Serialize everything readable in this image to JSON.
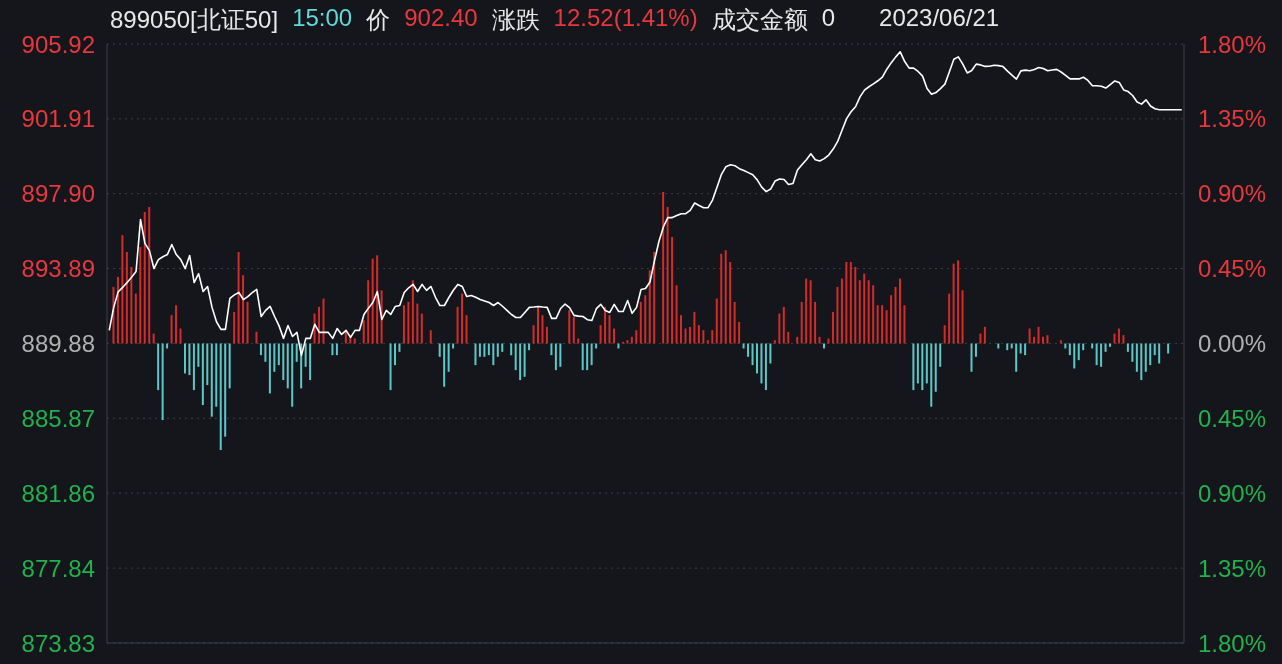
{
  "chart_data": {
    "type": "line",
    "title": "899050[北证50]",
    "annotations": [
      "15:00",
      "价",
      "902.40",
      "涨跌",
      "12.52(1.41%)",
      "成交金额",
      "0",
      "2023/06/21"
    ],
    "categories": [
      null,
      null,
      null,
      null,
      null,
      null,
      null,
      null,
      null,
      null,
      null,
      null,
      null,
      null,
      null,
      null,
      null,
      null,
      null,
      null,
      null,
      null,
      null,
      null,
      null,
      null,
      null,
      null,
      null,
      null,
      null,
      null,
      null,
      null,
      null,
      null,
      null,
      null,
      null,
      null,
      null,
      null,
      null,
      null,
      null,
      null,
      null,
      null,
      null,
      null,
      null,
      null,
      null,
      null,
      null,
      null,
      null,
      null,
      null,
      null,
      null,
      null,
      null,
      null,
      null,
      null,
      null,
      null,
      null,
      null,
      null,
      null,
      null,
      null,
      null,
      null,
      null,
      null,
      null,
      null,
      null,
      null,
      null,
      null,
      null,
      null,
      null,
      null,
      null,
      null,
      null,
      null,
      null,
      null,
      null,
      null,
      null,
      null,
      null,
      null,
      null,
      null,
      null,
      null,
      null,
      null,
      null,
      null,
      null,
      null,
      null,
      null,
      null,
      null,
      null,
      null,
      null,
      null,
      null,
      null,
      null,
      null,
      null,
      null,
      null,
      null,
      null,
      null,
      null,
      null,
      null,
      null,
      null,
      null,
      null,
      null,
      null,
      null,
      null,
      null,
      null,
      null,
      null,
      null,
      null,
      null,
      null,
      null,
      null,
      null,
      null,
      null,
      null,
      null,
      null,
      null,
      null,
      null,
      null,
      null,
      null,
      null,
      null,
      null,
      null,
      null,
      null,
      null,
      null,
      null,
      null,
      null,
      null,
      null,
      null,
      null,
      null,
      null,
      null,
      null,
      null,
      null,
      null,
      null,
      null,
      null,
      null,
      null,
      null,
      null,
      null,
      null,
      null,
      null,
      null,
      null,
      null,
      null,
      null,
      null,
      null,
      null,
      null,
      null,
      null,
      null,
      null,
      null,
      null,
      null,
      null,
      null,
      null,
      null,
      null,
      null,
      null,
      null,
      null,
      null,
      null,
      null,
      null,
      null,
      null,
      null,
      null,
      null,
      null,
      null,
      null,
      null,
      null,
      null,
      null,
      null,
      null,
      null,
      null,
      null,
      null
    ],
    "ylim": [
      873.83,
      905.92
    ],
    "yticks": [
      873.83,
      877.84,
      881.86,
      885.87,
      889.88,
      893.89,
      {
        "value": 897.9,
        "label": "897.90"
      },
      901.91,
      905.92
    ],
    "y2lim": [
      -1.8,
      1.8
    ],
    "y2ticks": [
      {
        "value": -1.8,
        "label": "1.80%"
      },
      {
        "value": -1.35,
        "label": "1.35%"
      },
      {
        "value": -0.9,
        "label": "0.90%"
      },
      {
        "value": -0.45,
        "label": "0.45%"
      },
      {
        "value": 0,
        "label": "0.00%"
      },
      {
        "value": 0.45,
        "label": "0.45%"
      },
      {
        "value": 0.9,
        "label": "0.90%"
      },
      {
        "value": 1.35,
        "label": "1.35%"
      },
      {
        "value": 1.8,
        "label": "1.80%"
      }
    ],
    "grid": "y",
    "stacked": true,
    "series": [
      {
        "type": "bar",
        "axis": "y2",
        "color": "#d42b2b",
        "values": [
          null,
          0.34,
          0.4,
          0.65,
          0.55,
          0.46,
          0.3,
          0.58,
          0.79,
          0.82,
          0.06,
          null,
          null,
          null,
          0.17,
          0.23,
          0.09,
          null,
          null,
          null,
          null,
          null,
          null,
          null,
          null,
          null,
          null,
          null,
          0.19,
          0.55,
          0.41,
          0.25,
          null,
          0.07,
          null,
          null,
          null,
          null,
          null,
          null,
          null,
          null,
          null,
          null,
          null,
          null,
          0.18,
          0.22,
          0.27,
          null,
          null,
          null,
          null,
          0.08,
          0.05,
          0.03,
          null,
          0.14,
          0.38,
          0.51,
          0.53,
          0.32,
          null,
          null,
          null,
          null,
          0.23,
          0.25,
          0.38,
          0.24,
          0.18,
          null,
          0.08,
          null,
          null,
          null,
          null,
          null,
          0.22,
          0.3,
          0.17,
          null,
          null,
          null,
          null,
          null,
          null,
          null,
          null,
          null,
          null,
          null,
          null,
          null,
          null,
          0.11,
          0.22,
          0.17,
          0.1,
          null,
          null,
          null,
          null,
          0.2,
          0.16,
          0.03,
          null,
          null,
          null,
          null,
          0.11,
          0.22,
          0.17,
          0.09,
          null,
          0.01,
          0.02,
          0.04,
          0.08,
          0.25,
          0.29,
          0.44,
          0.55,
          null,
          0.91,
          0.82,
          0.64,
          0.35,
          0.17,
          0.09,
          0.1,
          0.19,
          0.11,
          0.08,
          0.02,
          0.08,
          0.27,
          0.54,
          0.56,
          0.49,
          0.25,
          0.13,
          null,
          null,
          null,
          null,
          null,
          null,
          null,
          0.02,
          0.18,
          0.22,
          0.07,
          null,
          0.04,
          0.25,
          0.39,
          0.38,
          0.25,
          0.04,
          null,
          0.03,
          0.19,
          0.34,
          0.39,
          0.49,
          0.49,
          0.46,
          0.38,
          0.42,
          0.38,
          0.35,
          0.23,
          0.23,
          0.2,
          0.29,
          0.34,
          0.39,
          0.23,
          null,
          null,
          null,
          null,
          null,
          null,
          null,
          null,
          0.11,
          0.3,
          0.48,
          0.5,
          0.32,
          null,
          null,
          null,
          0.06,
          0.1,
          null,
          null,
          null,
          null,
          null,
          null,
          null,
          null,
          null,
          0.09,
          0.04,
          0.1,
          0.04,
          0.05,
          null,
          null,
          0.02,
          null,
          null,
          null,
          null,
          null,
          null,
          null,
          null,
          null,
          null,
          null,
          0.06,
          0.09,
          0.05,
          null,
          null,
          null,
          null,
          null,
          null,
          null,
          null,
          null,
          null,
          null,
          null,
          null
        ]
      },
      {
        "type": "bar",
        "axis": "y2",
        "color": "#5cc9c9",
        "values": [
          null,
          null,
          null,
          null,
          null,
          null,
          null,
          null,
          null,
          null,
          null,
          -0.28,
          -0.46,
          -0.03,
          null,
          null,
          null,
          -0.18,
          -0.19,
          -0.28,
          -0.14,
          -0.37,
          -0.25,
          -0.44,
          -0.38,
          -0.64,
          -0.56,
          -0.27,
          null,
          null,
          null,
          null,
          null,
          null,
          -0.07,
          -0.11,
          -0.3,
          -0.17,
          -0.13,
          -0.22,
          -0.27,
          -0.38,
          -0.11,
          -0.27,
          -0.14,
          -0.22,
          null,
          null,
          null,
          null,
          -0.07,
          -0.07,
          null,
          null,
          null,
          null,
          null,
          null,
          null,
          null,
          null,
          null,
          null,
          -0.28,
          -0.13,
          -0.05,
          null,
          null,
          null,
          null,
          null,
          null,
          null,
          null,
          -0.08,
          -0.26,
          -0.17,
          -0.03,
          null,
          null,
          null,
          null,
          -0.13,
          -0.08,
          -0.08,
          -0.07,
          -0.13,
          -0.08,
          -0.05,
          null,
          -0.07,
          -0.16,
          -0.22,
          -0.2,
          -0.04,
          null,
          null,
          null,
          null,
          -0.07,
          -0.16,
          -0.14,
          null,
          null,
          null,
          null,
          -0.16,
          -0.16,
          -0.13,
          -0.03,
          null,
          null,
          null,
          null,
          -0.03,
          null,
          null,
          null,
          null,
          null,
          null,
          null,
          null,
          null,
          null,
          null,
          null,
          null,
          null,
          null,
          null,
          null,
          null,
          null,
          null,
          null,
          null,
          null,
          null,
          null,
          null,
          null,
          -0.03,
          -0.08,
          -0.13,
          -0.18,
          -0.24,
          -0.28,
          -0.12,
          null,
          null,
          null,
          null,
          null,
          null,
          null,
          null,
          null,
          null,
          null,
          -0.03,
          null,
          null,
          null,
          null,
          null,
          null,
          null,
          null,
          null,
          null,
          null,
          null,
          null,
          null,
          null,
          null,
          null,
          null,
          null,
          -0.28,
          -0.24,
          -0.28,
          -0.24,
          -0.38,
          -0.29,
          -0.14,
          null,
          null,
          null,
          null,
          null,
          null,
          -0.17,
          -0.08,
          null,
          null,
          null,
          null,
          -0.03,
          null,
          -0.04,
          -0.03,
          -0.17,
          -0.06,
          -0.07,
          null,
          null,
          null,
          null,
          null,
          null,
          null,
          null,
          -0.03,
          -0.07,
          -0.15,
          -0.1,
          -0.04,
          null,
          -0.03,
          -0.13,
          -0.14,
          -0.05,
          -0.02,
          null,
          null,
          null,
          -0.05,
          -0.11,
          -0.17,
          -0.22,
          -0.17,
          -0.13,
          -0.07,
          -0.12,
          null,
          -0.06,
          null,
          null,
          null
        ]
      },
      {
        "color": "#ffffff",
        "values": [
          890.58,
          891.81,
          892.64,
          892.88,
          893.14,
          893.43,
          893.73,
          896.51,
          895.23,
          894.85,
          893.89,
          894.37,
          894.52,
          894.64,
          895.18,
          894.64,
          894.37,
          893.89,
          894.59,
          893.14,
          893.62,
          892.66,
          892.93,
          891.81,
          891.04,
          890.63,
          890.63,
          892.29,
          892.48,
          892.61,
          892.23,
          892.39,
          892.6,
          892.77,
          891.32,
          891.65,
          891.86,
          891.32,
          890.82,
          890.15,
          890.84,
          890.25,
          890.47,
          889.24,
          890.15,
          890.15,
          890.9,
          890.47,
          890.47,
          890.47,
          890.15,
          890.68,
          890.36,
          890.58,
          890.2,
          890.58,
          890.58,
          891.43,
          891.77,
          892.07,
          892.66,
          891.16,
          891.65,
          891.43,
          891.86,
          891.91,
          892.61,
          892.86,
          893.04,
          892.66,
          893.04,
          892.72,
          892.93,
          892.35,
          891.91,
          891.91,
          892.34,
          892.73,
          893.04,
          892.93,
          892.39,
          892.45,
          892.35,
          892.23,
          892.15,
          892.07,
          891.91,
          892.07,
          891.87,
          891.65,
          891.43,
          891.27,
          891.27,
          891.54,
          891.81,
          891.83,
          891.86,
          891.83,
          891.81,
          891.22,
          891.22,
          891.75,
          891.99,
          891.8,
          891.38,
          891.34,
          891.32,
          891.15,
          891.11,
          891.74,
          891.97,
          891.64,
          891.54,
          891.97,
          891.59,
          891.59,
          892.18,
          891.49,
          891.81,
          892.77,
          892.82,
          893.17,
          894.3,
          895.34,
          896.12,
          896.62,
          896.62,
          896.73,
          896.83,
          896.83,
          897.01,
          897.4,
          897.27,
          897.15,
          897.15,
          897.56,
          898.25,
          898.94,
          899.35,
          899.45,
          899.4,
          899.24,
          899.14,
          899.03,
          898.92,
          898.64,
          898.25,
          898.01,
          898.15,
          898.58,
          898.69,
          898.66,
          898.39,
          898.45,
          899.17,
          899.45,
          899.72,
          900.04,
          899.72,
          899.65,
          899.78,
          899.97,
          900.29,
          900.7,
          901.31,
          901.92,
          902.29,
          902.56,
          903.09,
          903.45,
          903.63,
          903.78,
          903.95,
          904.14,
          904.57,
          904.92,
          905.23,
          905.5,
          904.98,
          904.63,
          904.63,
          904.45,
          904.2,
          903.54,
          903.23,
          903.32,
          903.53,
          903.77,
          904.43,
          905.1,
          905.23,
          904.84,
          904.37,
          904.5,
          904.84,
          904.8,
          904.72,
          904.73,
          904.78,
          904.76,
          904.71,
          904.47,
          904.25,
          904.04,
          904.48,
          904.52,
          904.49,
          904.55,
          904.66,
          904.61,
          904.49,
          904.53,
          904.56,
          904.42,
          904.24,
          904.05,
          904.05,
          904.05,
          904.14,
          903.97,
          903.68,
          903.68,
          903.66,
          903.56,
          903.75,
          903.94,
          903.86,
          903.46,
          903.37,
          903.16,
          902.81,
          902.7,
          902.93,
          902.6,
          902.45,
          902.4,
          902.4,
          902.4,
          902.4,
          902.4,
          902.4
        ]
      }
    ]
  }
}
